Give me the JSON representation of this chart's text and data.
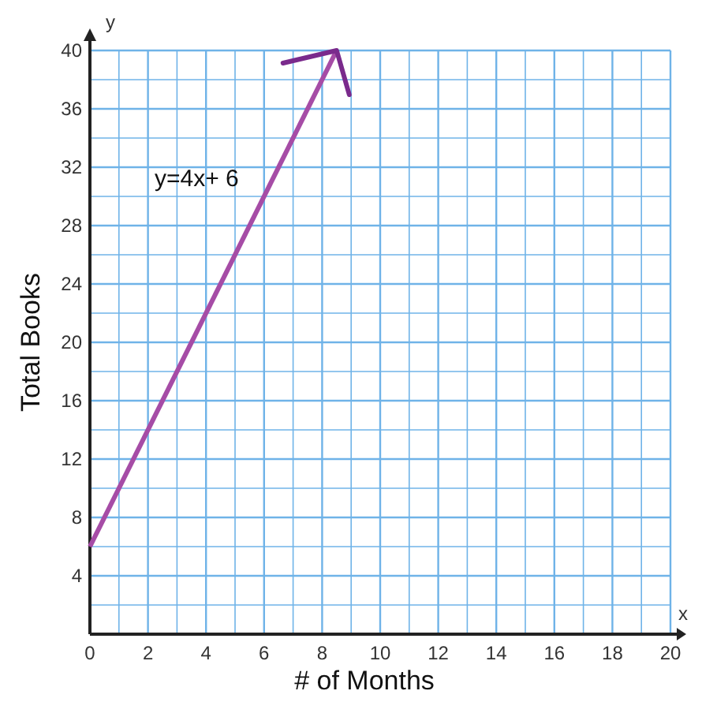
{
  "chart_data": {
    "type": "line",
    "xlabel": "# of Months",
    "ylabel": "Total Books",
    "x": [
      0,
      8.5
    ],
    "series": [
      {
        "color": "#a64ca6",
        "values": [
          6,
          40
        ]
      }
    ],
    "xlim": [
      0,
      20
    ],
    "ylim": [
      0,
      40
    ],
    "xticks": [
      0,
      {
        "value": 1,
        "label": null
      },
      2,
      {
        "value": 3,
        "label": null
      },
      4,
      {
        "value": 5,
        "label": null
      },
      6,
      {
        "value": 7,
        "label": null
      },
      8,
      {
        "value": 9,
        "label": null
      },
      10,
      {
        "value": 11,
        "label": null
      },
      12,
      {
        "value": 13,
        "label": null
      },
      14,
      {
        "value": 15,
        "label": null
      },
      16,
      {
        "value": 17,
        "label": null
      },
      18,
      {
        "value": 19,
        "label": null
      },
      20
    ],
    "yticks": [
      {
        "value": 0,
        "label": null
      },
      {
        "value": 2,
        "label": null
      },
      4,
      {
        "value": 6,
        "label": null
      },
      8,
      {
        "value": 10,
        "label": null
      },
      12,
      {
        "value": 14,
        "label": null
      },
      16,
      {
        "value": 18,
        "label": null
      },
      20,
      {
        "value": 22,
        "label": null
      },
      24,
      {
        "value": 26,
        "label": null
      },
      28,
      {
        "value": 30,
        "label": null
      },
      32,
      {
        "value": 34,
        "label": null
      },
      36,
      {
        "value": 38,
        "label": null
      },
      40
    ],
    "grid": true,
    "marker": "none",
    "line_style": "solid",
    "annotations": [
      "y=4x+ 6",
      "x",
      "y"
    ]
  }
}
